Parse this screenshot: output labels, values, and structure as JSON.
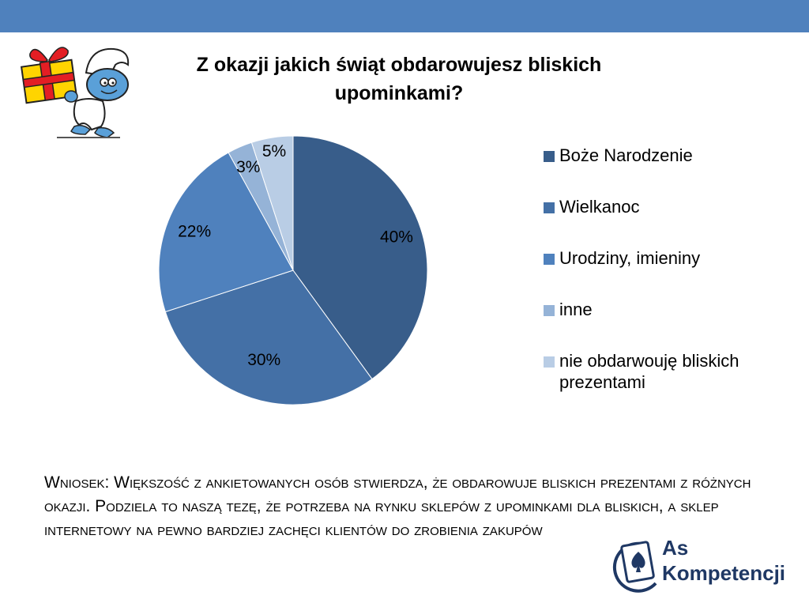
{
  "chart_data": {
    "type": "pie",
    "title": "Z okazji jakich świąt obdarowujesz bliskich upominkami?",
    "slices": [
      {
        "label": "Boże Narodzenie",
        "value": 40,
        "display": "40%",
        "color": "#385d8a"
      },
      {
        "label": "Wielkanoc",
        "value": 30,
        "display": "30%",
        "color": "#4470a6"
      },
      {
        "label": "Urodziny, imieniny",
        "value": 22,
        "display": "22%",
        "color": "#4f81bd"
      },
      {
        "label": "inne",
        "value": 3,
        "display": "3%",
        "color": "#95b3d7"
      },
      {
        "label": "nie obdarwouję bliskich prezentami",
        "value": 5,
        "display": "5%",
        "color": "#b9cde5"
      }
    ],
    "legend_position": "right"
  },
  "conclusion": "Wniosek: Większość z ankietowanych osób stwierdza, że obdarowuje bliskich prezentami z różnych okazji. Podziela to naszą tezę, że potrzeba na rynku sklepów z upominkami dla bliskich, a sklep internetowy na pewno bardziej zachęci klientów do zrobienia zakupów",
  "logo": {
    "line1": "As",
    "line2": "Kompetencji"
  },
  "colors": {
    "top_bar": "#4f81bd",
    "logo_text": "#1f3864"
  }
}
